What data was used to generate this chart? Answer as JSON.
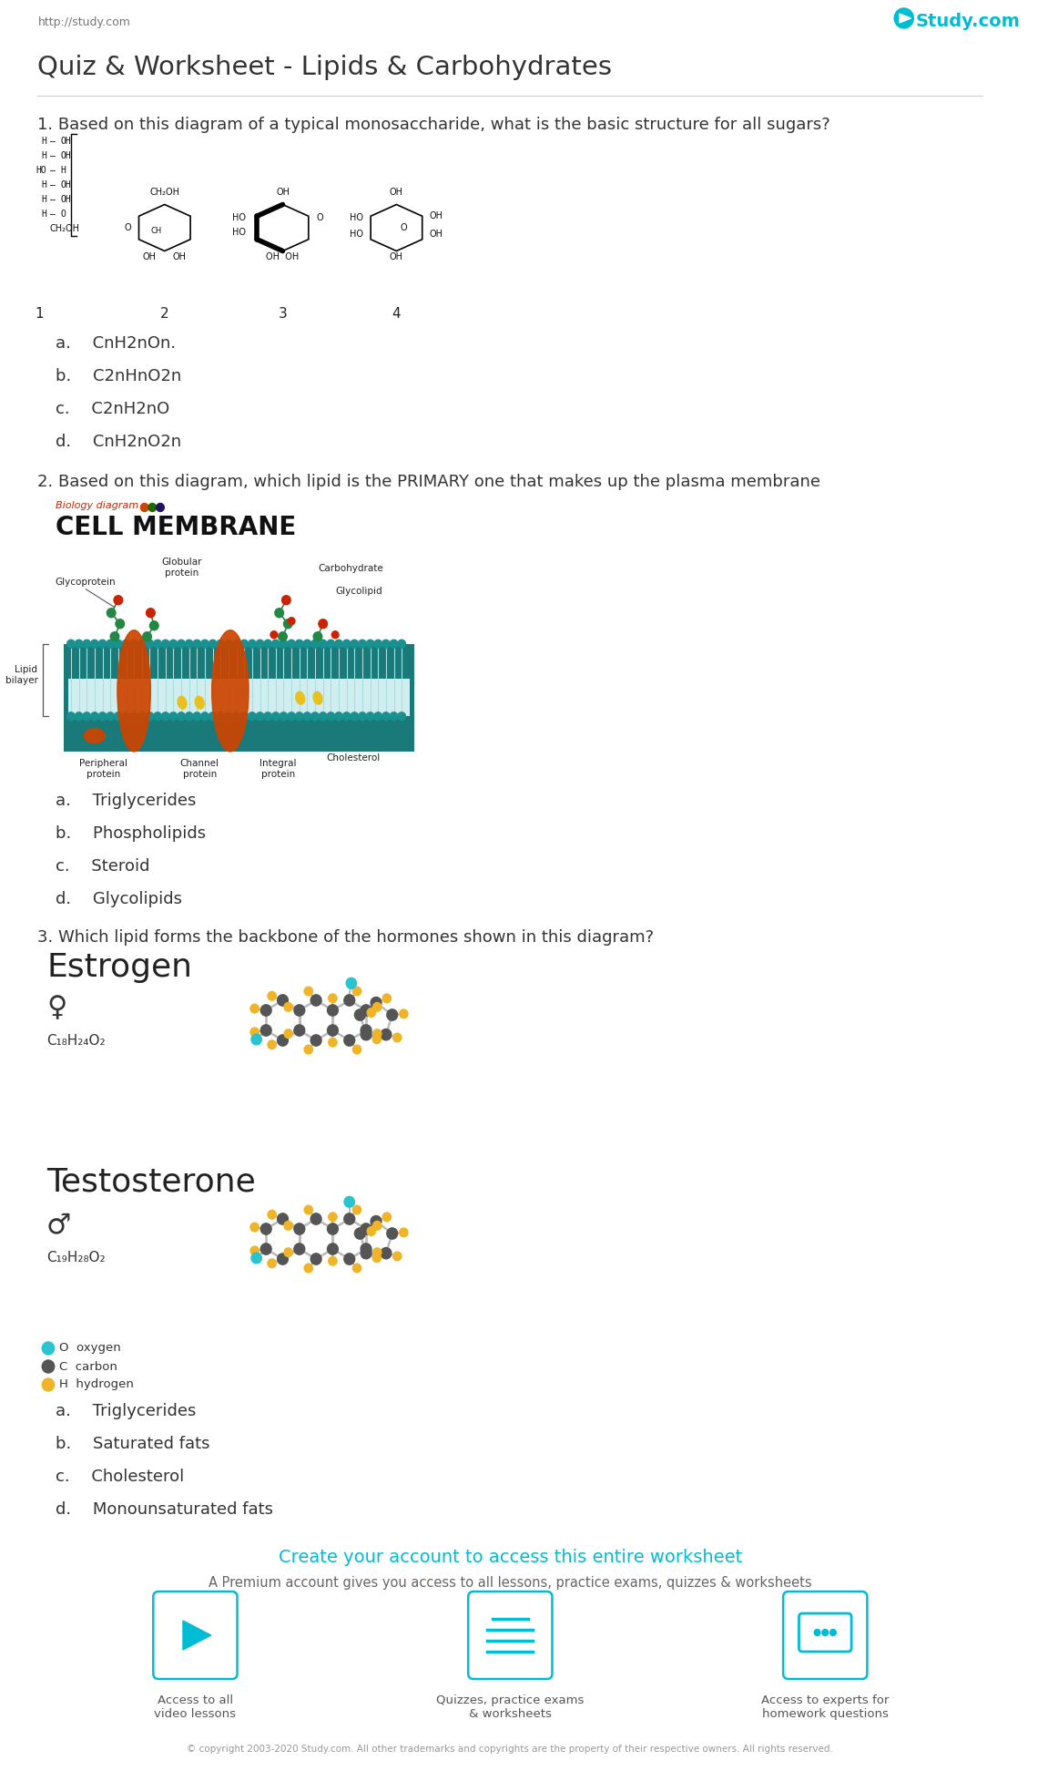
{
  "title": "Quiz & Worksheet - Lipids & Carbohydrates",
  "header_left": "http://study.com",
  "background_color": "#ffffff",
  "q1_text": "1. Based on this diagram of a typical monosaccharide, what is the basic structure for all sugars?",
  "q1_options": [
    "a.  CnH2nOn.",
    "b.  C2nHnO2n",
    "c.  C2nH2nO",
    "d.  CnH2nO2n"
  ],
  "q2_text": "2. Based on this diagram, which lipid is the PRIMARY one that makes up the plasma membrane",
  "q2_options": [
    "a.  Triglycerides",
    "b.  Phospholipids",
    "c.  Steroid",
    "d.  Glycolipids"
  ],
  "q3_text": "3. Which lipid forms the backbone of the hormones shown in this diagram?",
  "q3_options": [
    "a.  Triglycerides",
    "b.  Saturated fats",
    "c.  Cholesterol",
    "d.  Monounsaturated fats"
  ],
  "estrogen_formula": "C₁₈H₂₄O₂",
  "testosterone_formula": "C₁₉H₂₈O₂",
  "cta_title": "Create your account to access this entire worksheet",
  "cta_subtitle": "A Premium account gives you access to all lessons, practice exams, quizzes & worksheets",
  "cta_color": "#00bcd4",
  "icon_labels": [
    "Access to all\nvideo lessons",
    "Quizzes, practice exams\n& worksheets",
    "Access to experts for\nhomework questions"
  ],
  "footer": "© copyright 2003-2020 Study.com. All other trademarks and copyrights are the property of their respective owners. All rights reserved.",
  "line_color": "#cccccc",
  "text_color": "#333333",
  "question_fontsize": 13,
  "option_fontsize": 13,
  "node_dark": "#555555",
  "node_yellow": "#f0b429",
  "node_cyan": "#29c4d0",
  "bond_color": "#bbbbbb"
}
